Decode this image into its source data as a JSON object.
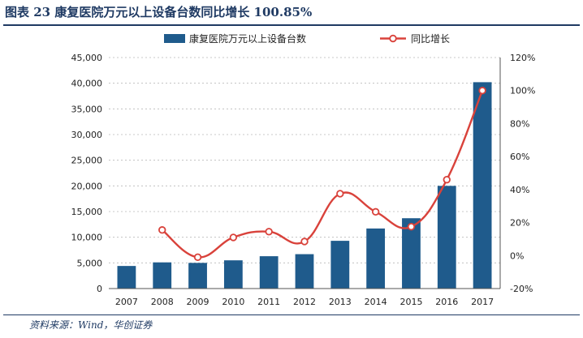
{
  "header": {
    "title": "图表 23   康复医院万元以上设备台数同比增长 100.85%"
  },
  "footer": {
    "source": "资料来源：Wind，华创证券"
  },
  "chart_data": {
    "type": "bar",
    "categories": [
      "2007",
      "2008",
      "2009",
      "2010",
      "2011",
      "2012",
      "2013",
      "2014",
      "2015",
      "2016",
      "2017"
    ],
    "series": [
      {
        "name": "康复医院万元以上设备台数",
        "type": "bar",
        "axis": "left",
        "color": "#1f5b8c",
        "values": [
          4400,
          5100,
          5000,
          5500,
          6300,
          6700,
          9300,
          11700,
          13700,
          20000,
          40200
        ]
      },
      {
        "name": "同比增长",
        "type": "line",
        "axis": "right",
        "color": "#d9423b",
        "values": [
          null,
          0.155,
          -0.01,
          0.11,
          0.145,
          0.085,
          0.375,
          0.265,
          0.175,
          0.46,
          1.0
        ]
      }
    ],
    "y_left": {
      "ylim": [
        0,
        45000
      ],
      "ticks": [
        "0",
        "5,000",
        "10,000",
        "15,000",
        "20,000",
        "25,000",
        "30,000",
        "35,000",
        "40,000",
        "45,000"
      ]
    },
    "y_right": {
      "ylim": [
        -0.2,
        1.2
      ],
      "ticks": [
        "-20%",
        "0%",
        "20%",
        "40%",
        "60%",
        "80%",
        "100%",
        "120%"
      ]
    },
    "grid": "horizontal-dashed",
    "legend_placement": "top"
  }
}
